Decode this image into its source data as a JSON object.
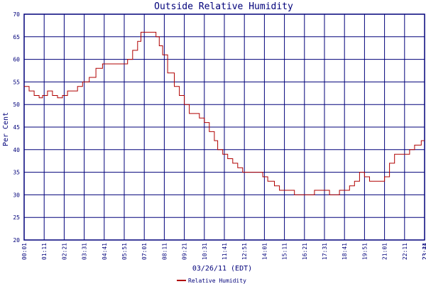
{
  "chart_data": {
    "type": "line",
    "title": "Outside Relative Humidity",
    "xlabel": "03/26/11 (EDT)",
    "ylabel": "Per Cent",
    "ylim": [
      20,
      70
    ],
    "yticks": [
      20,
      25,
      30,
      35,
      40,
      45,
      50,
      55,
      60,
      65,
      70
    ],
    "xticks": [
      "00:01",
      "01:11",
      "02:21",
      "03:31",
      "04:41",
      "05:51",
      "07:01",
      "08:11",
      "09:21",
      "10:31",
      "11:41",
      "12:51",
      "14:01",
      "15:11",
      "16:21",
      "17:31",
      "18:41",
      "19:51",
      "21:01",
      "22:11",
      "23:21",
      "23:44"
    ],
    "grid": true,
    "legend": "bottom-center",
    "series": [
      {
        "name": "Relative Humidity",
        "color": "#b00000",
        "x": [
          0.0,
          0.1,
          0.3,
          0.6,
          0.9,
          1.1,
          1.4,
          1.7,
          2.0,
          2.3,
          2.6,
          2.9,
          3.2,
          3.5,
          3.9,
          4.3,
          4.7,
          5.1,
          5.5,
          5.9,
          6.2,
          6.5,
          6.8,
          7.0,
          7.3,
          7.6,
          7.9,
          8.1,
          8.3,
          8.6,
          9.0,
          9.3,
          9.6,
          9.9,
          10.2,
          10.5,
          10.8,
          11.1,
          11.4,
          11.6,
          11.9,
          12.2,
          12.5,
          12.8,
          13.1,
          13.4,
          13.7,
          14.0,
          14.3,
          14.6,
          15.0,
          15.3,
          15.6,
          15.9,
          16.2,
          16.5,
          16.8,
          17.1,
          17.4,
          17.7,
          18.0,
          18.3,
          18.6,
          18.9,
          19.2,
          19.5,
          19.8,
          20.1,
          20.4,
          20.7,
          21.0,
          21.3,
          21.6,
          21.9,
          22.2,
          22.5,
          22.8,
          23.1,
          23.4,
          23.6,
          23.8,
          23.99
        ],
        "values": [
          54.0,
          54.0,
          53.0,
          52.0,
          51.5,
          52.0,
          53.0,
          52.0,
          51.5,
          52.0,
          53.0,
          53.0,
          54.0,
          55.0,
          56.0,
          58.0,
          59.0,
          59.0,
          59.0,
          59.0,
          60.0,
          62.0,
          64.0,
          66.0,
          66.0,
          66.0,
          65.0,
          63.0,
          61.0,
          57.0,
          54.0,
          52.0,
          50.0,
          48.0,
          48.0,
          47.0,
          46.0,
          44.0,
          42.0,
          40.0,
          39.0,
          38.0,
          37.0,
          36.0,
          35.0,
          35.0,
          35.0,
          35.0,
          34.0,
          33.0,
          32.0,
          31.0,
          31.0,
          31.0,
          30.0,
          30.0,
          30.0,
          30.0,
          31.0,
          31.0,
          31.0,
          30.0,
          30.0,
          31.0,
          31.0,
          32.0,
          33.0,
          35.0,
          34.0,
          33.0,
          33.0,
          33.0,
          34.0,
          37.0,
          39.0,
          39.0,
          39.0,
          40.0,
          41.0,
          41.0,
          42.0,
          42.0
        ]
      }
    ]
  }
}
